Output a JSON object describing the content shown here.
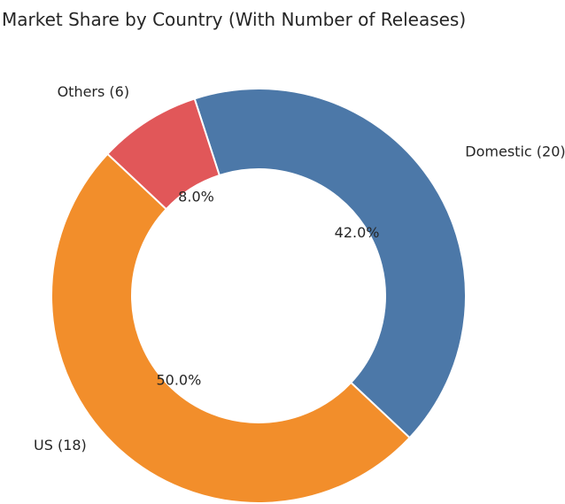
{
  "chart_data": {
    "type": "pie",
    "style": "donut",
    "title": "Market Share by Country (With Number of Releases)",
    "slices": [
      {
        "label": "Domestic (20)",
        "category": "Domestic",
        "releases": 20,
        "percent": 42.0,
        "percent_label": "42.0%",
        "color": "#4c78a8"
      },
      {
        "label": "US (18)",
        "category": "US",
        "releases": 18,
        "percent": 50.0,
        "percent_label": "50.0%",
        "color": "#f28e2b"
      },
      {
        "label": "Others (6)",
        "category": "Others",
        "releases": 6,
        "percent": 8.0,
        "percent_label": "8.0%",
        "color": "#e15759"
      }
    ],
    "start_angle_deg": 108,
    "direction": "clockwise",
    "legend": "none"
  }
}
